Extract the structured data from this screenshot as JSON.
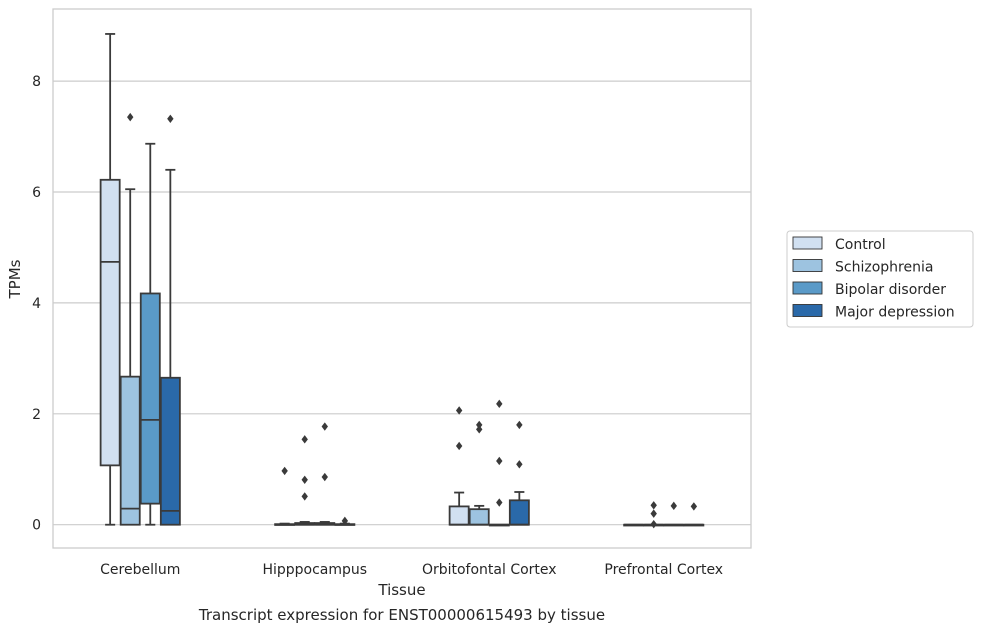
{
  "caption": "Transcript expression for ENST00000615493 by tissue",
  "chart_data": {
    "type": "box",
    "xlabel": "Tissue",
    "ylabel": "TPMs",
    "categories": [
      "Cerebellum",
      "Hipppocampus",
      "Orbitofontal Cortex",
      "Prefrontal Cortex"
    ],
    "ylim": [
      -0.42,
      9.3
    ],
    "yticks": [
      0,
      2,
      4,
      6,
      8
    ],
    "grid": "horizontal",
    "legend_position": "right",
    "series": [
      {
        "name": "Control",
        "color": "#d1e0f1",
        "boxes": [
          {
            "whislo": 0,
            "q1": 1.07,
            "med": 4.74,
            "q3": 6.22,
            "whishi": 8.85,
            "fliers": []
          },
          {
            "whislo": 0,
            "q1": 0,
            "med": 0,
            "q3": 0.01,
            "whishi": 0.02,
            "fliers": [
              0.97
            ]
          },
          {
            "whislo": 0,
            "q1": 0,
            "med": 0,
            "q3": 0.33,
            "whishi": 0.58,
            "fliers": [
              2.06,
              1.42
            ]
          },
          {
            "whislo": 0,
            "q1": 0,
            "med": 0,
            "q3": 0,
            "whishi": 0,
            "fliers": []
          }
        ]
      },
      {
        "name": "Schizophrenia",
        "color": "#9dc3e0",
        "boxes": [
          {
            "whislo": 0,
            "q1": 0,
            "med": 0.29,
            "q3": 2.67,
            "whishi": 6.05,
            "fliers": [
              7.35
            ]
          },
          {
            "whislo": 0,
            "q1": 0,
            "med": 0,
            "q3": 0.03,
            "whishi": 0.05,
            "fliers": [
              1.54,
              0.81,
              0.51
            ]
          },
          {
            "whislo": 0,
            "q1": 0,
            "med": 0,
            "q3": 0.28,
            "whishi": 0.34,
            "fliers": [
              1.8,
              1.72
            ]
          },
          {
            "whislo": 0,
            "q1": 0,
            "med": 0,
            "q3": 0,
            "whishi": 0,
            "fliers": [
              0.35,
              0.2,
              0.01
            ]
          }
        ]
      },
      {
        "name": "Bipolar disorder",
        "color": "#5a9ac8",
        "boxes": [
          {
            "whislo": 0,
            "q1": 0.38,
            "med": 1.89,
            "q3": 4.17,
            "whishi": 6.87,
            "fliers": []
          },
          {
            "whislo": 0,
            "q1": 0,
            "med": 0,
            "q3": 0.03,
            "whishi": 0.05,
            "fliers": [
              1.77,
              0.86
            ]
          },
          {
            "whislo": 0,
            "q1": 0,
            "med": 0,
            "q3": 0,
            "whishi": 0,
            "fliers": [
              2.18,
              1.15,
              0.4
            ]
          },
          {
            "whislo": 0,
            "q1": 0,
            "med": 0,
            "q3": 0,
            "whishi": 0,
            "fliers": [
              0.34
            ]
          }
        ]
      },
      {
        "name": "Major depression",
        "color": "#2a69a9",
        "boxes": [
          {
            "whislo": 0,
            "q1": 0,
            "med": 0.25,
            "q3": 2.65,
            "whishi": 6.4,
            "fliers": [
              7.32
            ]
          },
          {
            "whislo": 0,
            "q1": 0,
            "med": 0,
            "q3": 0.01,
            "whishi": 0.02,
            "fliers": [
              0.07
            ]
          },
          {
            "whislo": 0,
            "q1": 0,
            "med": 0,
            "q3": 0.44,
            "whishi": 0.59,
            "fliers": [
              1.8,
              1.09
            ]
          },
          {
            "whislo": 0,
            "q1": 0,
            "med": 0,
            "q3": 0,
            "whishi": 0,
            "fliers": [
              0.33
            ]
          }
        ]
      }
    ]
  }
}
